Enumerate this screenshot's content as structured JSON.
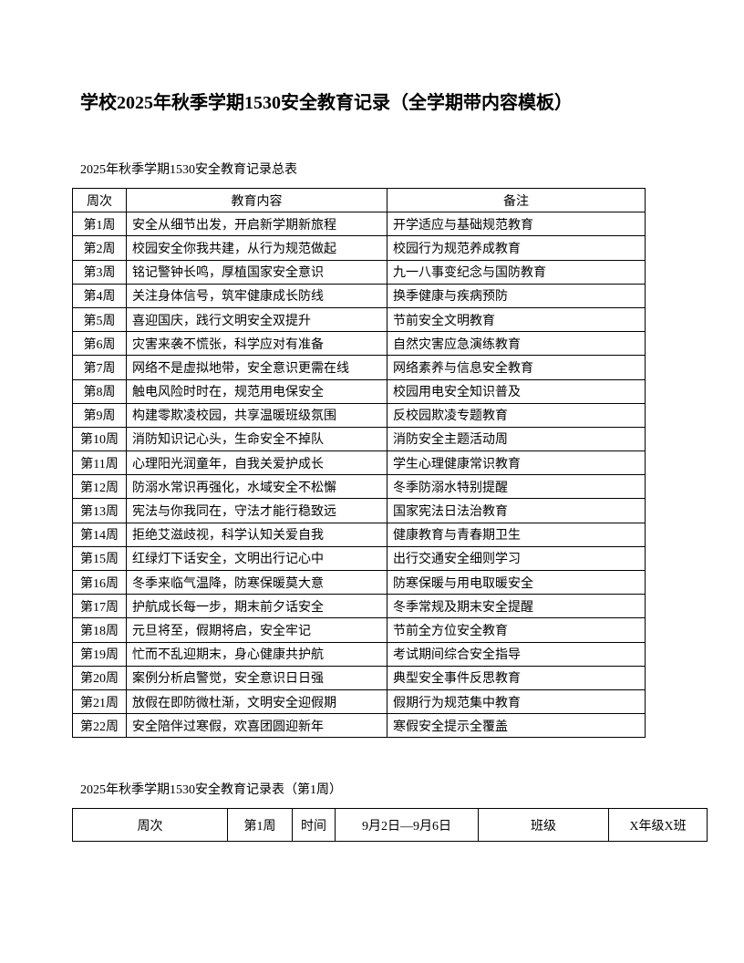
{
  "title": "学校2025年秋季学期1530安全教育记录（全学期带内容模板）",
  "summary_table": {
    "caption": "2025年秋季学期1530安全教育记录总表",
    "headers": [
      "周次",
      "教育内容",
      "备注"
    ],
    "rows": [
      [
        "第1周",
        "安全从细节出发，开启新学期新旅程",
        "开学适应与基础规范教育"
      ],
      [
        "第2周",
        "校园安全你我共建，从行为规范做起",
        "校园行为规范养成教育"
      ],
      [
        "第3周",
        "铭记警钟长鸣，厚植国家安全意识",
        "九一八事变纪念与国防教育"
      ],
      [
        "第4周",
        "关注身体信号，筑牢健康成长防线",
        "换季健康与疾病预防"
      ],
      [
        "第5周",
        "喜迎国庆，践行文明安全双提升",
        "节前安全文明教育"
      ],
      [
        "第6周",
        "灾害来袭不慌张，科学应对有准备",
        "自然灾害应急演练教育"
      ],
      [
        "第7周",
        "网络不是虚拟地带，安全意识更需在线",
        "网络素养与信息安全教育"
      ],
      [
        "第8周",
        "触电风险时时在，规范用电保安全",
        "校园用电安全知识普及"
      ],
      [
        "第9周",
        "构建零欺凌校园，共享温暖班级氛围",
        "反校园欺凌专题教育"
      ],
      [
        "第10周",
        "消防知识记心头，生命安全不掉队",
        "消防安全主题活动周"
      ],
      [
        "第11周",
        "心理阳光润童年，自我关爱护成长",
        "学生心理健康常识教育"
      ],
      [
        "第12周",
        "防溺水常识再强化，水域安全不松懈",
        "冬季防溺水特别提醒"
      ],
      [
        "第13周",
        "宪法与你我同在，守法才能行稳致远",
        "国家宪法日法治教育"
      ],
      [
        "第14周",
        "拒绝艾滋歧视，科学认知关爱自我",
        "健康教育与青春期卫生"
      ],
      [
        "第15周",
        "红绿灯下话安全，文明出行记心中",
        "出行交通安全细则学习"
      ],
      [
        "第16周",
        "冬季来临气温降，防寒保暖莫大意",
        "防寒保暖与用电取暖安全"
      ],
      [
        "第17周",
        "护航成长每一步，期末前夕话安全",
        "冬季常规及期末安全提醒"
      ],
      [
        "第18周",
        "元旦将至，假期将启，安全牢记",
        "节前全方位安全教育"
      ],
      [
        "第19周",
        "忙而不乱迎期末，身心健康共护航",
        "考试期间综合安全指导"
      ],
      [
        "第20周",
        "案例分析启警觉，安全意识日日强",
        "典型安全事件反思教育"
      ],
      [
        "第21周",
        "放假在即防微杜渐，文明安全迎假期",
        "假期行为规范集中教育"
      ],
      [
        "第22周",
        "安全陪伴过寒假，欢喜团圆迎新年",
        "寒假安全提示全覆盖"
      ]
    ]
  },
  "week_table": {
    "caption": "2025年秋季学期1530安全教育记录表（第1周）",
    "cells": [
      "周次",
      "第1周",
      "时间",
      "9月2日—9月6日",
      "班级",
      "X年级X班"
    ]
  }
}
